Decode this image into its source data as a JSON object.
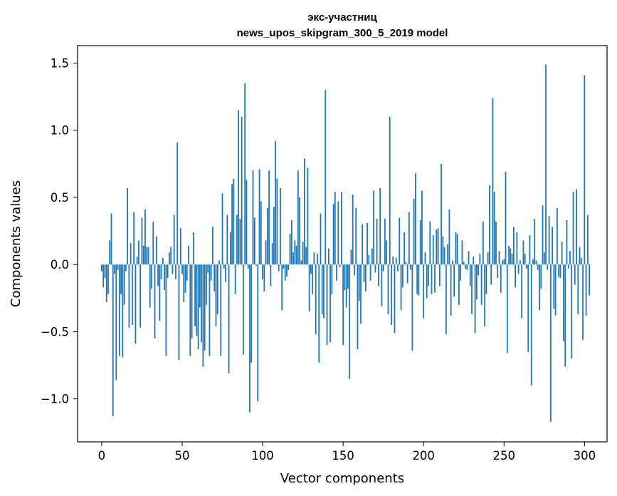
{
  "chart_data": {
    "type": "bar",
    "title_lines": [
      "экс-участниц",
      "news_upos_skipgram_300_5_2019 model"
    ],
    "xlabel": "Vector components",
    "ylabel": "Components values",
    "xlim": [
      -15,
      314
    ],
    "ylim": [
      -1.32,
      1.63
    ],
    "x_ticks": [
      0,
      50,
      100,
      150,
      200,
      250,
      300
    ],
    "x_tick_labels": [
      "0",
      "50",
      "100",
      "150",
      "200",
      "250",
      "300"
    ],
    "y_ticks": [
      -1.0,
      -0.5,
      0.0,
      0.5,
      1.0,
      1.5
    ],
    "y_tick_labels": [
      "−1.0",
      "−0.5",
      "0.0",
      "0.5",
      "1.0",
      "1.5"
    ],
    "bar_color": "#1f77b4",
    "grid": false,
    "legend": "none",
    "values": [
      -0.05,
      -0.17,
      -0.1,
      -0.28,
      -0.22,
      0.18,
      0.38,
      -1.13,
      -0.07,
      -0.86,
      -0.04,
      -0.68,
      -0.22,
      -0.69,
      -0.3,
      -0.05,
      0.57,
      -0.47,
      0.16,
      -0.45,
      0.39,
      -0.59,
      0.06,
      0.18,
      -0.47,
      0.35,
      0.14,
      0.41,
      0.13,
      0.13,
      -0.32,
      -0.18,
      0.32,
      -0.55,
      0.21,
      -0.16,
      -0.42,
      -0.11,
      0.05,
      -0.19,
      -0.68,
      -0.1,
      0.09,
      0.13,
      -0.07,
      0.37,
      -0.11,
      0.91,
      -0.71,
      0.27,
      -0.07,
      -0.28,
      -0.21,
      -0.12,
      0.14,
      -0.68,
      -0.55,
      0.24,
      -0.46,
      -0.53,
      -0.63,
      -0.32,
      -0.58,
      -0.76,
      -0.64,
      -0.3,
      -0.06,
      -0.68,
      -0.12,
      0.28,
      -0.2,
      -0.46,
      -0.37,
      0.03,
      -0.68,
      0.53,
      -0.03,
      -0.13,
      0.37,
      -0.81,
      0.24,
      0.6,
      0.64,
      -0.22,
      0.37,
      1.15,
      0.34,
      1.1,
      -0.67,
      1.35,
      0.63,
      -0.03,
      -1.1,
      -0.73,
      0.7,
      0.35,
      -0.01,
      -1.02,
      0.71,
      0.47,
      -0.11,
      -0.2,
      0.18,
      0.42,
      0.7,
      -0.16,
      0.16,
      0.43,
      0.92,
      0.64,
      -0.05,
      0.57,
      -0.34,
      -0.03,
      -0.12,
      -0.09,
      -0.04,
      0.23,
      0.33,
      0.09,
      0.18,
      0.14,
      0.7,
      0.5,
      0.03,
      0.17,
      0.79,
      0.13,
      0.72,
      -0.35,
      -0.07,
      -0.22,
      0.09,
      -0.52,
      0.08,
      -0.73,
      0.38,
      -0.37,
      -0.4,
      1.3,
      -0.6,
      0.12,
      -0.58,
      -0.22,
      0.45,
      0.54,
      -0.12,
      0.47,
      -0.02,
      0.54,
      -0.6,
      -0.19,
      -0.32,
      -0.18,
      -0.85,
      0.11,
      0.52,
      -0.08,
      0.42,
      -0.63,
      -0.27,
      -0.44,
      0.3,
      -0.13,
      -0.2,
      0.31,
      0.07,
      -0.12,
      0.12,
      0.55,
      -0.06,
      0.34,
      -0.16,
      0.57,
      -0.31,
      -0.05,
      0.34,
      0.18,
      -0.37,
      1.1,
      -0.45,
      0.06,
      -0.51,
      0.05,
      -0.05,
      0.35,
      -0.34,
      -0.17,
      0.24,
      0.02,
      -0.14,
      0.39,
      -0.04,
      -0.64,
      0.49,
      0.68,
      -0.22,
      -0.23,
      0.33,
      0.55,
      -0.4,
      0.09,
      -0.25,
      -0.16,
      0.32,
      -0.22,
      0.22,
      -0.21,
      0.26,
      0.27,
      -0.16,
      0.75,
      0.21,
      0.13,
      -0.52,
      0.15,
      0.41,
      -0.38,
      0.03,
      -0.24,
      0.24,
      0.23,
      -0.3,
      -0.12,
      0.18,
      0.02,
      -0.03,
      -0.04,
      0.1,
      -0.16,
      -0.37,
      0.06,
      -0.51,
      -0.26,
      -0.08,
      0.08,
      -0.3,
      0.32,
      -0.46,
      -0.22,
      0.09,
      0.59,
      -0.15,
      1.24,
      0.54,
      0.32,
      -0.1,
      0.1,
      -0.21,
      0.03,
      0.04,
      0.69,
      -0.66,
      0.14,
      0.12,
      0.08,
      0.28,
      -0.17,
      0.24,
      -0.07,
      0.03,
      -0.4,
      0.18,
      0.08,
      -0.03,
      -0.65,
      0.22,
      -0.9,
      0.04,
      0.34,
      0.03,
      -0.04,
      -0.34,
      -0.18,
      0.44,
      0.09,
      1.49,
      -0.04,
      0.36,
      -1.17,
      0.28,
      -0.33,
      -0.38,
      0.42,
      -0.09,
      -0.1,
      0.17,
      -0.57,
      -0.76,
      0.33,
      -0.03,
      0.1,
      -0.7,
      0.54,
      -0.15,
      0.56,
      -0.37,
      0.13,
      0.05,
      -0.56,
      1.41,
      -0.38,
      0.37,
      -0.23
    ]
  }
}
